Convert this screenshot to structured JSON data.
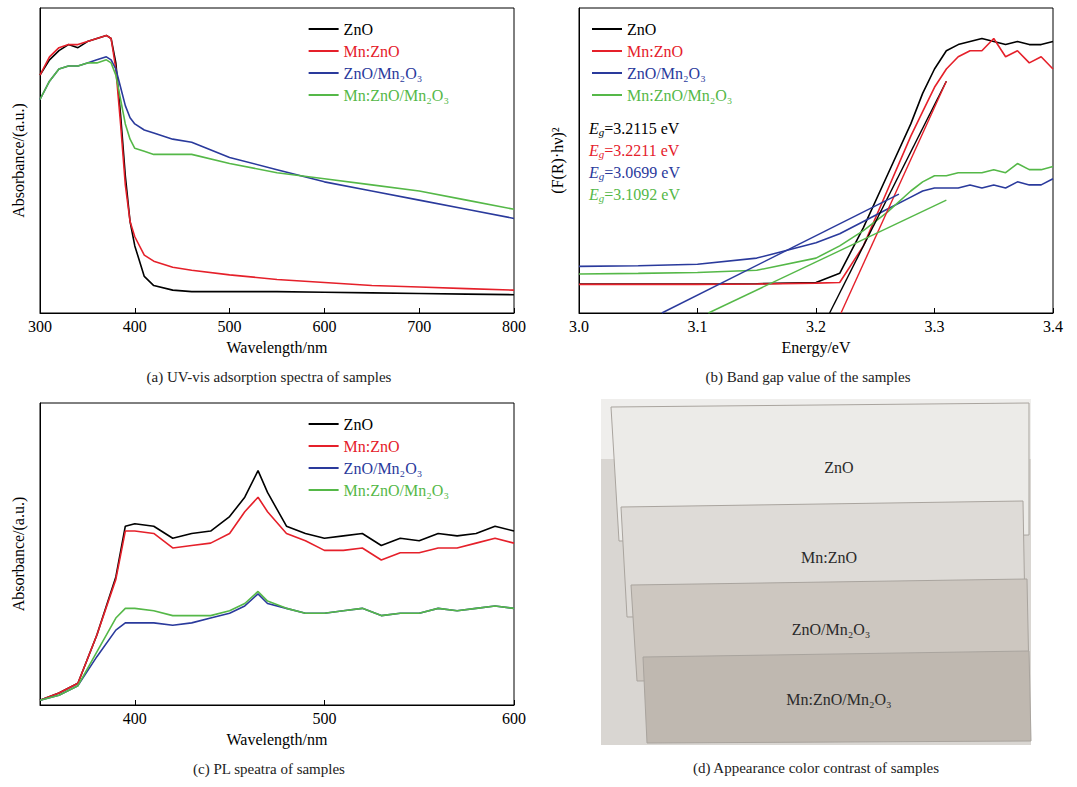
{
  "chart_data": [
    {
      "type": "line",
      "title": "(a) UV-vis adsorption spectra of samples",
      "x_label": "Wavelength/nm",
      "y_label": "Absorbance/(a.u.)",
      "x": [
        300,
        310,
        320,
        330,
        340,
        350,
        360,
        370,
        375,
        380,
        385,
        390,
        395,
        400,
        410,
        420,
        440,
        460,
        500,
        550,
        600,
        650,
        700,
        750,
        800
      ],
      "series": [
        {
          "name": "ZnO",
          "color": "#000000",
          "values": [
            78,
            83,
            86,
            88,
            87,
            89,
            90,
            91,
            90,
            82,
            65,
            45,
            30,
            22,
            12,
            9,
            7.5,
            7,
            7,
            7,
            6.8,
            6.6,
            6.4,
            6.2,
            6
          ]
        },
        {
          "name": "Mn:ZnO",
          "color": "#e5202a",
          "values": [
            78,
            84,
            87,
            88,
            88,
            89,
            90,
            91,
            90,
            80,
            62,
            42,
            30,
            25,
            19,
            17,
            15,
            14,
            12.5,
            11,
            10,
            9,
            8.5,
            8,
            7.5
          ]
        },
        {
          "name": "ZnO/Mn₂O₃",
          "color": "#2a3a9c",
          "values": [
            70,
            76,
            80,
            81,
            81,
            82,
            83,
            84,
            83,
            80,
            74,
            68,
            64,
            62,
            60,
            59,
            57,
            56,
            51,
            47,
            43,
            40,
            37,
            34,
            31
          ]
        },
        {
          "name": "Mn:ZnO/Mn₂O₃",
          "color": "#55b848",
          "values": [
            70,
            76,
            80,
            81,
            81,
            82,
            82,
            83,
            82,
            78,
            70,
            62,
            57,
            54,
            53,
            52,
            52,
            52,
            49,
            46,
            44,
            42,
            40,
            37,
            34
          ]
        }
      ],
      "xlim": [
        300,
        800
      ],
      "xticks": [
        300,
        400,
        500,
        600,
        700,
        800
      ],
      "ylim": [
        0,
        100
      ],
      "yticks": [],
      "tick_labels": "x",
      "legend": "upper right",
      "grid": false
    },
    {
      "type": "line",
      "title": "(b) Band gap value of the samples",
      "x_label": "Energy/eV",
      "y_label": "(F(R)·hν)²",
      "x": [
        3.0,
        3.05,
        3.1,
        3.15,
        3.2,
        3.22,
        3.24,
        3.26,
        3.28,
        3.29,
        3.3,
        3.31,
        3.32,
        3.33,
        3.34,
        3.35,
        3.36,
        3.37,
        3.38,
        3.39,
        3.4
      ],
      "series": [
        {
          "name": "ZnO",
          "color": "#000000",
          "values": [
            9.5,
            9.5,
            9.5,
            9.6,
            10,
            13,
            28,
            45,
            62,
            72,
            80,
            86,
            88,
            89,
            90,
            89,
            88,
            89,
            88,
            88,
            89
          ]
        },
        {
          "name": "Mn:ZnO",
          "color": "#e5202a",
          "values": [
            9.4,
            9.4,
            9.4,
            9.5,
            9.8,
            10,
            22,
            40,
            58,
            66,
            74,
            80,
            84,
            86,
            86,
            90,
            84,
            86,
            82,
            84,
            80
          ]
        },
        {
          "name": "ZnO/Mn₂O₃",
          "color": "#2a3a9c",
          "values": [
            15.3,
            15.5,
            16,
            18,
            23,
            26,
            30,
            34,
            38,
            40,
            41,
            41,
            41,
            42,
            41,
            42,
            41,
            43,
            42,
            42,
            44
          ]
        },
        {
          "name": "Mn:ZnO/Mn₂O₃",
          "color": "#55b848",
          "values": [
            12.8,
            13,
            13.3,
            14,
            18,
            22,
            27,
            33,
            40,
            43,
            45,
            45,
            46,
            46,
            46,
            47,
            46,
            49,
            47,
            47,
            48
          ]
        }
      ],
      "fits": [
        {
          "color": "#000000",
          "x": [
            3.2115,
            3.31
          ],
          "values": [
            0,
            76
          ]
        },
        {
          "color": "#e5202a",
          "x": [
            3.2211,
            3.31
          ],
          "values": [
            0,
            76
          ]
        },
        {
          "color": "#2a3a9c",
          "x": [
            3.0699,
            3.27
          ],
          "values": [
            0,
            39
          ]
        },
        {
          "color": "#55b848",
          "x": [
            3.1092,
            3.31
          ],
          "values": [
            0,
            37
          ]
        }
      ],
      "annotations": [
        {
          "symbol": "E",
          "subscript": "g",
          "text": "=3.2115 eV",
          "color": "#000000"
        },
        {
          "symbol": "E",
          "subscript": "g",
          "text": "=3.2211 eV",
          "color": "#e5202a"
        },
        {
          "symbol": "E",
          "subscript": "g",
          "text": "=3.0699 eV",
          "color": "#2a3a9c"
        },
        {
          "symbol": "E",
          "subscript": "g",
          "text": "=3.1092 eV",
          "color": "#55b848"
        }
      ],
      "xlim": [
        3.0,
        3.4
      ],
      "xticks": [
        {
          "value": 3.0,
          "label": "3.0"
        },
        3.1,
        3.2,
        3.3,
        3.4
      ],
      "ylim": [
        0,
        100
      ],
      "yticks": [],
      "tick_labels": "x",
      "legend": "upper left",
      "grid": false
    },
    {
      "type": "line",
      "title": "(c) PL speatra of samples",
      "x_label": "Wavelength/nm",
      "y_label": "Absorbance/(a.u.)",
      "x": [
        350,
        360,
        370,
        380,
        390,
        395,
        400,
        410,
        420,
        430,
        440,
        450,
        458,
        465,
        470,
        480,
        490,
        500,
        510,
        520,
        530,
        540,
        550,
        560,
        570,
        580,
        590,
        600
      ],
      "series": [
        {
          "name": "ZnO",
          "color": "#000000",
          "values": [
            2,
            5,
            9,
            29,
            53,
            74,
            75,
            74,
            69,
            71,
            72,
            78,
            86,
            97,
            88,
            74,
            71,
            69,
            70,
            71,
            66,
            69,
            68,
            71,
            70,
            71,
            74,
            72
          ]
        },
        {
          "name": "Mn:ZnO",
          "color": "#e5202a",
          "values": [
            2,
            5,
            9,
            29,
            52,
            72,
            72,
            71,
            65,
            66,
            67,
            71,
            80,
            86,
            80,
            71,
            68,
            64,
            64,
            65,
            60,
            63,
            63,
            65,
            65,
            67,
            69,
            67
          ]
        },
        {
          "name": "ZnO/Mn₂O₃",
          "color": "#2a3a9c",
          "values": [
            2,
            4,
            8,
            20,
            31,
            34,
            34,
            34,
            33,
            34,
            36,
            38,
            41,
            46,
            42,
            40,
            38,
            38,
            39,
            40,
            37,
            38,
            38,
            40,
            39,
            40,
            41,
            40
          ]
        },
        {
          "name": "Mn:ZnO/Mn₂O₃",
          "color": "#55b848",
          "values": [
            2,
            4,
            8,
            22,
            36,
            40,
            40,
            39,
            37,
            37,
            37,
            39,
            42,
            47,
            43,
            40,
            38,
            38,
            39,
            40,
            37,
            38,
            38,
            40,
            39,
            40,
            41,
            40
          ]
        }
      ],
      "xlim": [
        350,
        600
      ],
      "xticks": [
        400,
        500,
        600
      ],
      "ylim": [
        0,
        125
      ],
      "yticks": [],
      "tick_labels": "x",
      "legend": "upper right",
      "grid": false
    }
  ],
  "photo": {
    "caption": "(d) Appearance color contrast of samples",
    "labels": [
      "ZnO",
      "Mn:ZnO",
      "ZnO/Mn₂O₃",
      "Mn:ZnO/Mn₂O₃"
    ],
    "colors": [
      "#ecebe8",
      "#dedbd7",
      "#cdc7c0",
      "#bfb8b0"
    ]
  }
}
